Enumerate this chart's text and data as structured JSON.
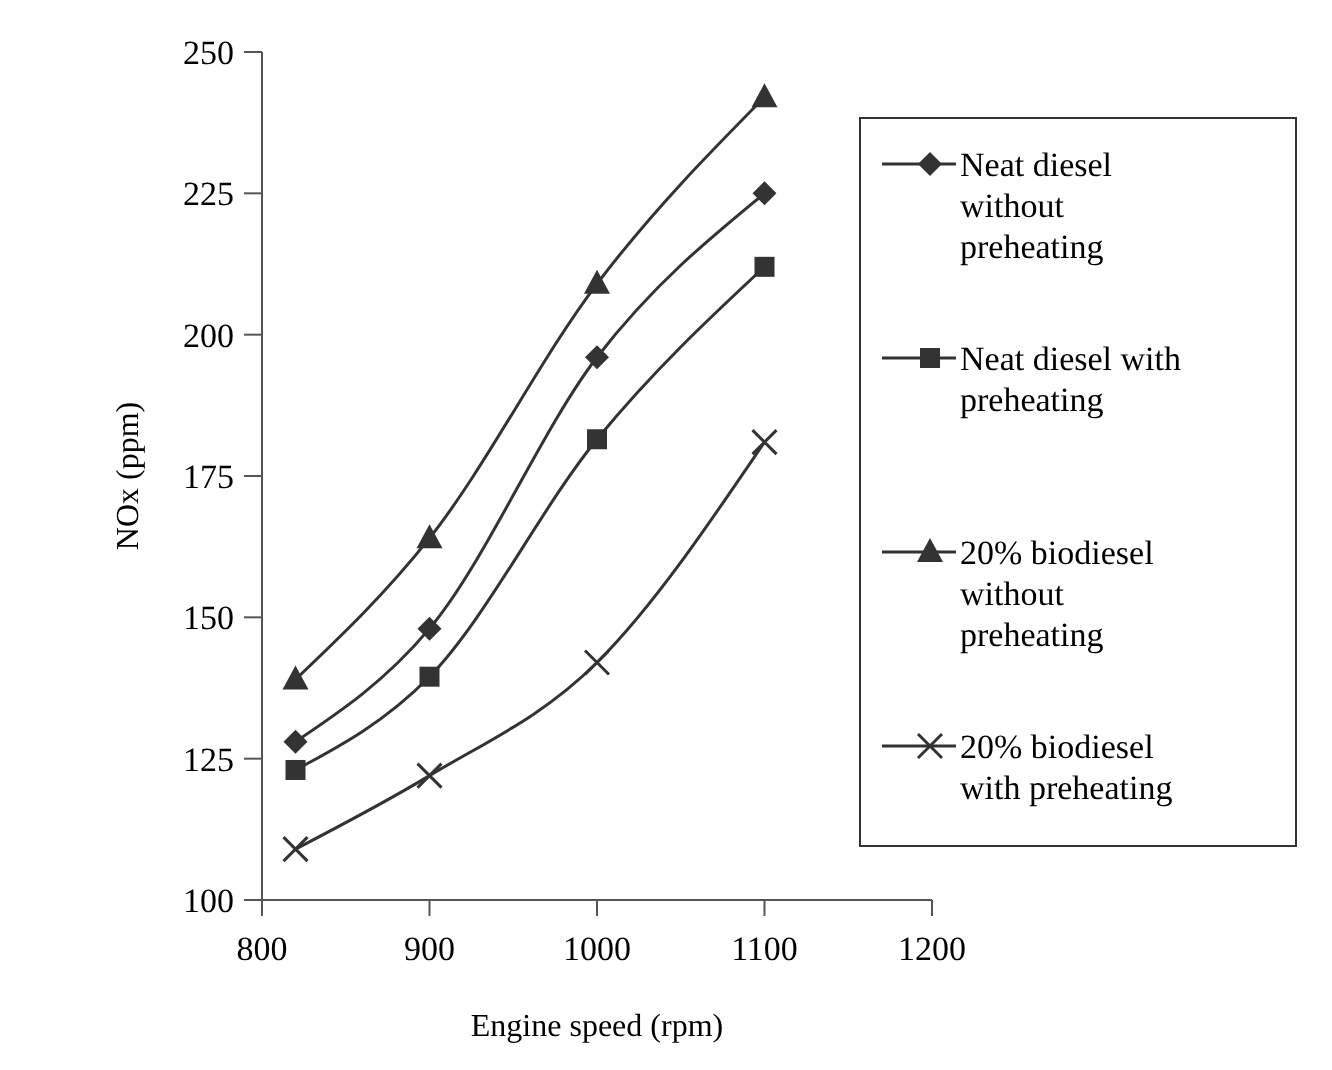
{
  "chart_data": {
    "type": "line",
    "xlabel": "Engine speed (rpm)",
    "ylabel": "NOx  (ppm)",
    "x": [
      820,
      900,
      1000,
      1100
    ],
    "xlim": [
      800,
      1200
    ],
    "xticks": [
      800,
      900,
      1000,
      1100,
      1200
    ],
    "ylim": [
      100,
      250
    ],
    "yticks": [
      100,
      125,
      150,
      175,
      200,
      225,
      250
    ],
    "legend": "right",
    "grid": false,
    "line_style": "solid",
    "series": [
      {
        "name": "Neat diesel without preheating",
        "color": "#333333",
        "marker": "diamond",
        "values": [
          128,
          148,
          196,
          225
        ]
      },
      {
        "name": "Neat diesel with preheating",
        "color": "#333333",
        "marker": "square",
        "values": [
          123,
          139.5,
          181.5,
          212
        ]
      },
      {
        "name": "20% biodiesel without preheating",
        "color": "#333333",
        "marker": "triangle",
        "values": [
          139,
          164,
          209,
          242
        ]
      },
      {
        "name": "20% biodiesel with preheating",
        "color": "#333333",
        "marker": "cross",
        "values": [
          109,
          122,
          142,
          181
        ]
      }
    ]
  }
}
